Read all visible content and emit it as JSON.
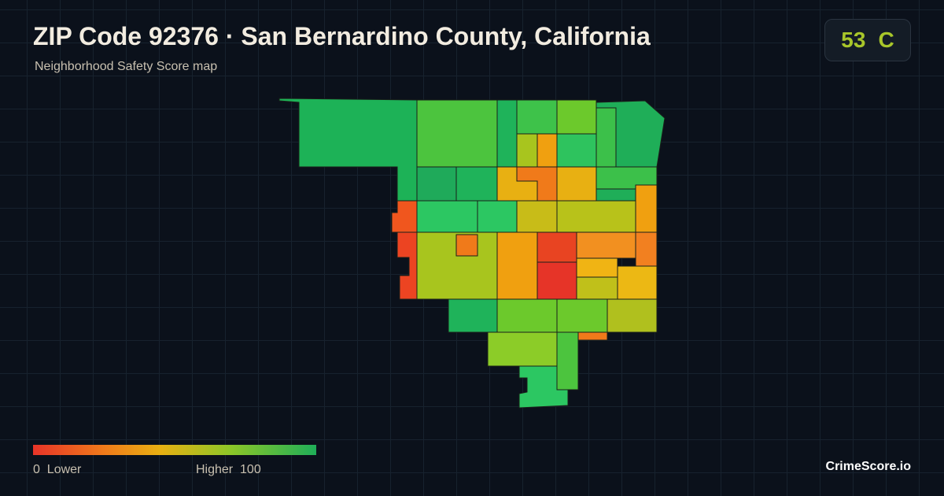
{
  "header": {
    "title": "ZIP Code 92376 · San Bernardino County, California",
    "subtitle": "Neighborhood Safety Score map"
  },
  "badge": {
    "score": 53,
    "grade": "C"
  },
  "legend": {
    "min": 0,
    "min_label": "Lower",
    "max_label": "Higher",
    "max": 100
  },
  "brand": "CrimeScore.io"
}
